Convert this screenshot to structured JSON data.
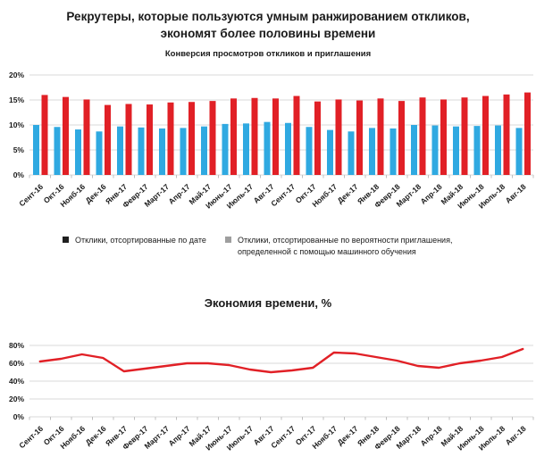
{
  "header": {
    "title_line1": "Рекрутеры, которые пользуются умным ранжированием откликов,",
    "title_line2": "экономят более половины времени"
  },
  "colors": {
    "bar_date": "#2fa9e1",
    "bar_ml": "#e12026",
    "line": "#e12026",
    "grid": "#d9d9d9",
    "tick": "#bfbfbf",
    "text": "#1a1a1a",
    "legend_marker_1": "#1f1f1f",
    "legend_marker_2": "#9e9e9e"
  },
  "legend": {
    "item1": "Отклики, отсортированные по дате",
    "item2_line1": "Отклики, отсортированные по вероятности приглашения,",
    "item2_line2": "определенной с помощью машинного обучения"
  },
  "chart_data": [
    {
      "type": "bar",
      "title": "Конверсия просмотров откликов и приглашения",
      "categories": [
        "Сент-16",
        "Окт-16",
        "Нояб-16",
        "Дек-16",
        "Янв-17",
        "Февр-17",
        "Март-17",
        "Апр-17",
        "Май-17",
        "Июнь-17",
        "Июль-17",
        "Авг-17",
        "Сент-17",
        "Окт-17",
        "Нояб-17",
        "Дек-17",
        "Янв-18",
        "Февр-18",
        "Март-18",
        "Апр-18",
        "Май-18",
        "Июнь-18",
        "Июль-18",
        "Авг-18"
      ],
      "series": [
        {
          "name": "Отклики, отсортированные по дате",
          "color": "#2fa9e1",
          "values": [
            10.0,
            9.6,
            9.1,
            8.7,
            9.7,
            9.5,
            9.3,
            9.4,
            9.7,
            10.2,
            10.3,
            10.6,
            10.4,
            9.6,
            9.0,
            8.7,
            9.4,
            9.3,
            10.0,
            9.9,
            9.7,
            9.8,
            9.9,
            9.4
          ]
        },
        {
          "name": "Отклики, отсортированные по вероятности приглашения, определенной с помощью машинного обучения",
          "color": "#e12026",
          "values": [
            16.0,
            15.6,
            15.1,
            14.0,
            14.2,
            14.1,
            14.5,
            14.6,
            14.8,
            15.3,
            15.4,
            15.3,
            15.8,
            14.7,
            15.1,
            14.9,
            15.3,
            14.8,
            15.5,
            15.1,
            15.5,
            15.8,
            16.1,
            16.5
          ]
        }
      ],
      "ylim": [
        0,
        20
      ],
      "ytick_values": [
        0,
        5,
        10,
        15,
        20
      ],
      "ytick_labels": [
        "0%",
        "5%",
        "10%",
        "15%",
        "20%"
      ],
      "grid": true,
      "legend_position": "bottom"
    },
    {
      "type": "line",
      "title": "Экономия времени, %",
      "categories": [
        "Сент-16",
        "Окт-16",
        "Нояб-16",
        "Дек-16",
        "Янв-17",
        "Февр-17",
        "Март-17",
        "Апр-17",
        "Май-17",
        "Июнь-17",
        "Июль-17",
        "Авг-17",
        "Сент-17",
        "Окт-17",
        "Нояб-17",
        "Дек-17",
        "Янв-18",
        "Февр-18",
        "Март-18",
        "Апр-18",
        "Май-18",
        "Июнь-18",
        "Июль-18",
        "Авг-18"
      ],
      "values": [
        62,
        65,
        70,
        66,
        51,
        54,
        57,
        60,
        60,
        58,
        53,
        50,
        52,
        55,
        72,
        71,
        67,
        63,
        57,
        55,
        60,
        63,
        67,
        76
      ],
      "color": "#e12026",
      "ylim": [
        0,
        80
      ],
      "ytick_values": [
        0,
        20,
        40,
        60,
        80
      ],
      "ytick_labels": [
        "0%",
        "20%",
        "40%",
        "60%",
        "80%"
      ],
      "grid": true
    }
  ]
}
